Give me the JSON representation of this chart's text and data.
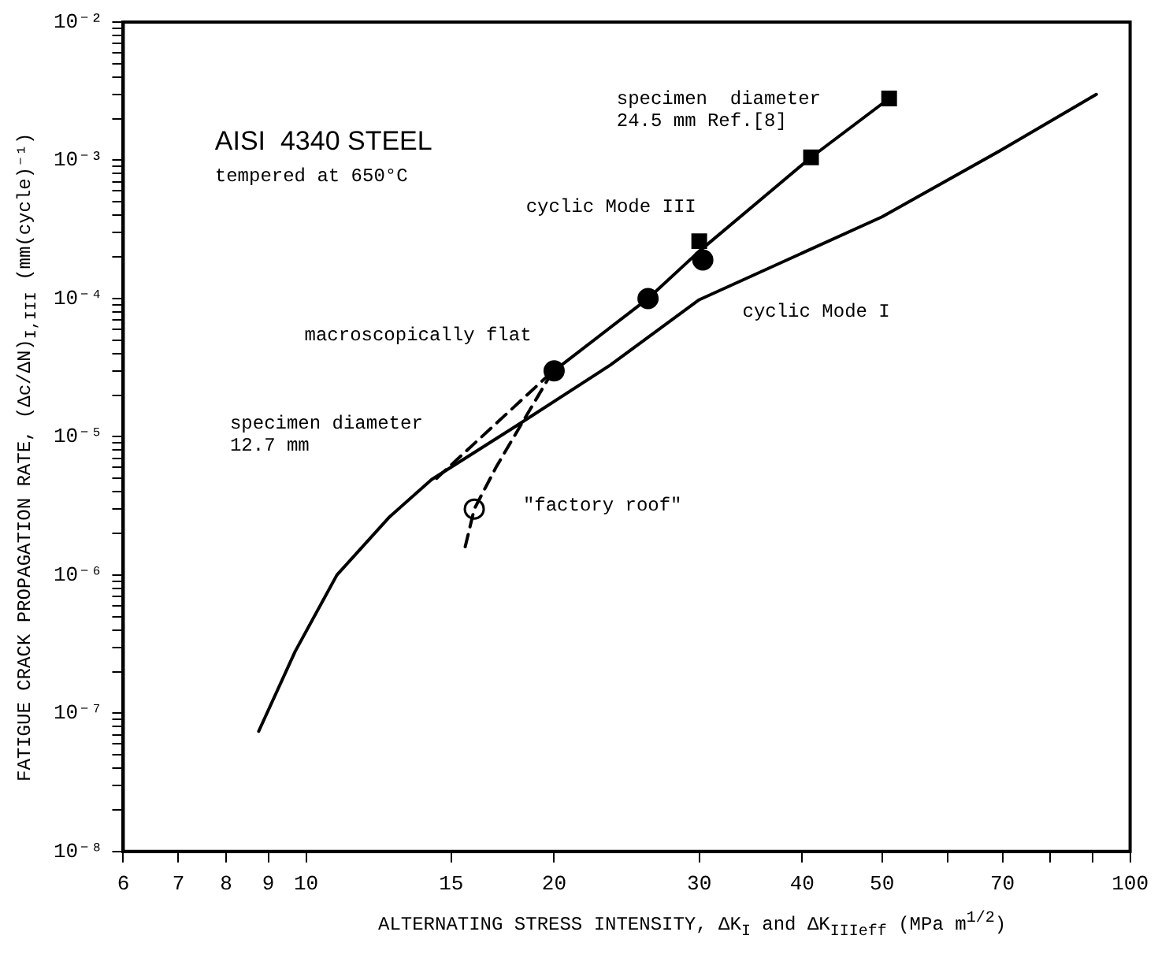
{
  "chart_data": {
    "type": "line",
    "log": "xy",
    "legend": false,
    "grid": false,
    "xlabel": "ALTERNATING STRESS INTENSITY,  ΔK$_{I}$ and ΔK$_{IIIeff}$ (MPa m$^{1/2}$)",
    "ylabel": "FATIGUE CRACK PROPAGATION RATE,  (Δc/ΔN)$_{I,III}$  (mm(cycle)⁻¹)",
    "xlim": [
      6,
      100
    ],
    "ylim": [
      1e-08,
      0.01
    ],
    "xticks": [
      6,
      7,
      8,
      9,
      10,
      15,
      20,
      30,
      40,
      50,
      {
        "value": 60,
        "label": null
      },
      70,
      {
        "value": 80,
        "label": null
      },
      {
        "value": 90,
        "label": null
      },
      100
    ],
    "yticks": [
      {
        "value": 1e-08,
        "label": "10⁻⁸"
      },
      {
        "value": 2e-08,
        "label": null
      },
      {
        "value": 3e-08,
        "label": null
      },
      {
        "value": 4e-08,
        "label": null
      },
      {
        "value": 5e-08,
        "label": null
      },
      {
        "value": 6e-08,
        "label": null
      },
      {
        "value": 7e-08,
        "label": null
      },
      {
        "value": 8e-08,
        "label": null
      },
      {
        "value": 9e-08,
        "label": null
      },
      {
        "value": 1e-07,
        "label": "10⁻⁷"
      },
      {
        "value": 2e-07,
        "label": null
      },
      {
        "value": 3e-07,
        "label": null
      },
      {
        "value": 4e-07,
        "label": null
      },
      {
        "value": 5e-07,
        "label": null
      },
      {
        "value": 6e-07,
        "label": null
      },
      {
        "value": 7e-07,
        "label": null
      },
      {
        "value": 8e-07,
        "label": null
      },
      {
        "value": 9e-07,
        "label": null
      },
      {
        "value": 1e-06,
        "label": "10⁻⁶"
      },
      {
        "value": 2e-06,
        "label": null
      },
      {
        "value": 3e-06,
        "label": null
      },
      {
        "value": 4e-06,
        "label": null
      },
      {
        "value": 5e-06,
        "label": null
      },
      {
        "value": 6e-06,
        "label": null
      },
      {
        "value": 7e-06,
        "label": null
      },
      {
        "value": 8e-06,
        "label": null
      },
      {
        "value": 9e-06,
        "label": null
      },
      {
        "value": 1e-05,
        "label": "10⁻⁵"
      },
      {
        "value": 2e-05,
        "label": null
      },
      {
        "value": 3e-05,
        "label": null
      },
      {
        "value": 4e-05,
        "label": null
      },
      {
        "value": 5e-05,
        "label": null
      },
      {
        "value": 6e-05,
        "label": null
      },
      {
        "value": 7e-05,
        "label": null
      },
      {
        "value": 8e-05,
        "label": null
      },
      {
        "value": 9e-05,
        "label": null
      },
      {
        "value": 0.0001,
        "label": "10⁻⁴"
      },
      {
        "value": 0.0002,
        "label": null
      },
      {
        "value": 0.0003,
        "label": null
      },
      {
        "value": 0.0004,
        "label": null
      },
      {
        "value": 0.0005,
        "label": null
      },
      {
        "value": 0.0006,
        "label": null
      },
      {
        "value": 0.0007,
        "label": null
      },
      {
        "value": 0.0008,
        "label": null
      },
      {
        "value": 0.0009,
        "label": null
      },
      {
        "value": 0.001,
        "label": "10⁻³"
      },
      {
        "value": 0.002,
        "label": null
      },
      {
        "value": 0.003,
        "label": null
      },
      {
        "value": 0.004,
        "label": null
      },
      {
        "value": 0.005,
        "label": null
      },
      {
        "value": 0.006,
        "label": null
      },
      {
        "value": 0.007,
        "label": null
      },
      {
        "value": 0.008,
        "label": null
      },
      {
        "value": 0.009,
        "label": null
      },
      {
        "value": 0.01,
        "label": "10⁻²"
      }
    ],
    "series": [
      {
        "color": "#000000",
        "marker": "none",
        "line_style": "solid",
        "x": [
          8.76,
          9.7,
          10.9,
          12.6,
          14.2,
          18,
          23.4,
          30,
          50,
          70,
          91
        ],
        "values": [
          7.4e-08,
          2.8e-07,
          1e-06,
          2.6e-06,
          4.9e-06,
          1.2e-05,
          3.3e-05,
          9.8e-05,
          0.00039,
          0.0012,
          0.003
        ]
      },
      {
        "color": "#000000",
        "marker": "none",
        "line_style": "solid",
        "x": [
          20,
          26,
          30,
          41,
          51
        ],
        "values": [
          3e-05,
          0.0001,
          0.00022,
          0.00105,
          0.0028
        ]
      },
      {
        "type": "line",
        "color": "#000000",
        "marker": "none",
        "line_style": "dashed",
        "x": [
          14.4,
          19.7
        ],
        "values": [
          5e-06,
          2.8e-05
        ]
      },
      {
        "type": "line",
        "color": "#000000",
        "marker": "none",
        "line_style": "dashed",
        "x": [
          15.6,
          16,
          17,
          18.2,
          19.8
        ],
        "values": [
          1.6e-06,
          3e-06,
          6e-06,
          1.2e-05,
          2.8e-05
        ]
      },
      {
        "type": "scatter",
        "color": "#000000",
        "marker": "circle",
        "x": [
          20,
          26,
          30.3
        ],
        "values": [
          3e-05,
          0.0001,
          0.00019
        ]
      },
      {
        "type": "scatter",
        "color": "#000000",
        "marker": "square",
        "x": [
          30,
          41,
          51
        ],
        "values": [
          0.00026,
          0.00105,
          0.0028
        ]
      },
      {
        "type": "scatter",
        "color": "#ffffff",
        "marker": "circle",
        "x": [
          16
        ],
        "values": [
          3e-06
        ]
      }
    ],
    "annotations": [
      "AISI  4340 STEEL",
      "tempered at 650°C",
      "cyclic Mode III",
      "cyclic Mode I",
      "macroscopically flat",
      "specimen diameter\n12.7 mm",
      "specimen  diameter\n24.5 mm Ref.[8]",
      "\"factory roof\""
    ]
  }
}
